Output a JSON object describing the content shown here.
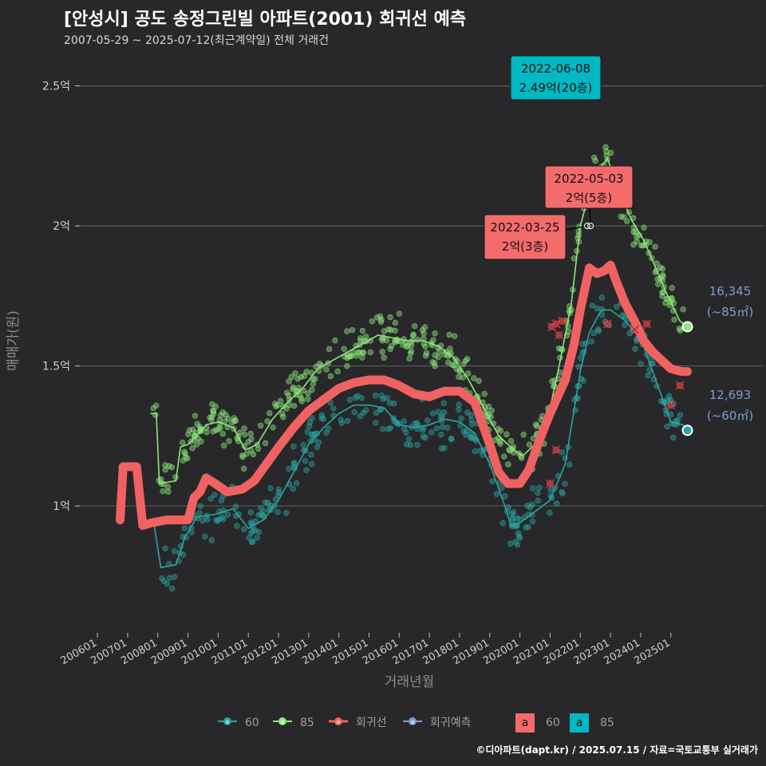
{
  "header": {
    "title": "[안성시] 공도 송정그린빌 아파트(2001) 회귀선 예측",
    "subtitle": "2007-05-29 ~ 2025-07-12(최근계약일) 전체 거래건"
  },
  "caption": "©디아파트(dapt.kr) / 2025.07.15 / 자료=국토교통부 실거래가",
  "colors": {
    "background": "#28282a",
    "grid": "#5a5a5a",
    "s60": "#2aa5a0",
    "s85": "#8ee67c",
    "regression": "#f06262",
    "forecast": "#7f9ccc",
    "label60": "#f36b6b",
    "label85": "#00b9c4"
  },
  "chart_data": {
    "type": "scatter",
    "xlabel": "거래년월",
    "ylabel": "매매가(원)",
    "x_ticks": [
      "200601",
      "200701",
      "200801",
      "200901",
      "201001",
      "201101",
      "201201",
      "201301",
      "201401",
      "201501",
      "201601",
      "201701",
      "201801",
      "201901",
      "202001",
      "202101",
      "202201",
      "202301",
      "202401",
      "202501"
    ],
    "y_ticks": [
      {
        "value": 1.0,
        "label": "1억"
      },
      {
        "value": 1.5,
        "label": "1.5억"
      },
      {
        "value": 2.0,
        "label": "2억"
      },
      {
        "value": 2.5,
        "label": "2.5억"
      }
    ],
    "ylim": [
      0.55,
      2.63
    ],
    "xlim": [
      2005.6,
      2026.25
    ],
    "series": [
      {
        "name": "60",
        "line": [
          [
            2007.85,
            0.95
          ],
          [
            2008.1,
            0.78
          ],
          [
            2008.6,
            0.79
          ],
          [
            2008.9,
            0.89
          ],
          [
            2009.3,
            0.96
          ],
          [
            2009.9,
            0.97
          ],
          [
            2010.5,
            0.99
          ],
          [
            2011.0,
            0.92
          ],
          [
            2011.5,
            0.95
          ],
          [
            2012.0,
            1.02
          ],
          [
            2012.5,
            1.12
          ],
          [
            2013.0,
            1.22
          ],
          [
            2013.5,
            1.28
          ],
          [
            2014.0,
            1.33
          ],
          [
            2014.5,
            1.36
          ],
          [
            2015.0,
            1.36
          ],
          [
            2015.5,
            1.35
          ],
          [
            2016.0,
            1.29
          ],
          [
            2016.5,
            1.28
          ],
          [
            2017.0,
            1.29
          ],
          [
            2017.5,
            1.31
          ],
          [
            2018.0,
            1.3
          ],
          [
            2018.5,
            1.26
          ],
          [
            2019.0,
            1.15
          ],
          [
            2019.5,
            1.0
          ],
          [
            2019.7,
            0.93
          ],
          [
            2020.0,
            0.94
          ],
          [
            2020.5,
            0.98
          ],
          [
            2021.0,
            1.02
          ],
          [
            2021.5,
            1.15
          ],
          [
            2022.0,
            1.48
          ],
          [
            2022.3,
            1.62
          ],
          [
            2022.7,
            1.7
          ],
          [
            2023.0,
            1.7
          ],
          [
            2023.5,
            1.66
          ],
          [
            2024.0,
            1.6
          ],
          [
            2024.5,
            1.45
          ],
          [
            2025.0,
            1.3
          ],
          [
            2025.4,
            1.29
          ],
          [
            2025.55,
            1.27
          ]
        ]
      },
      {
        "name": "85",
        "line": [
          [
            2007.75,
            1.33
          ],
          [
            2007.95,
            1.33
          ],
          [
            2008.05,
            1.08
          ],
          [
            2008.6,
            1.09
          ],
          [
            2008.75,
            1.21
          ],
          [
            2009.0,
            1.22
          ],
          [
            2009.3,
            1.25
          ],
          [
            2009.6,
            1.29
          ],
          [
            2010.0,
            1.3
          ],
          [
            2010.5,
            1.28
          ],
          [
            2010.9,
            1.2
          ],
          [
            2011.3,
            1.22
          ],
          [
            2011.8,
            1.31
          ],
          [
            2012.3,
            1.37
          ],
          [
            2012.8,
            1.42
          ],
          [
            2013.3,
            1.49
          ],
          [
            2013.8,
            1.52
          ],
          [
            2014.3,
            1.55
          ],
          [
            2014.8,
            1.58
          ],
          [
            2015.3,
            1.61
          ],
          [
            2015.8,
            1.6
          ],
          [
            2016.3,
            1.59
          ],
          [
            2016.8,
            1.59
          ],
          [
            2017.3,
            1.57
          ],
          [
            2017.8,
            1.53
          ],
          [
            2018.3,
            1.45
          ],
          [
            2018.8,
            1.35
          ],
          [
            2019.3,
            1.25
          ],
          [
            2019.8,
            1.2
          ],
          [
            2020.1,
            1.18
          ],
          [
            2020.5,
            1.22
          ],
          [
            2021.0,
            1.35
          ],
          [
            2021.3,
            1.5
          ],
          [
            2021.7,
            1.72
          ],
          [
            2022.0,
            2.0
          ],
          [
            2022.3,
            2.12
          ],
          [
            2022.6,
            2.2
          ],
          [
            2022.9,
            2.24
          ],
          [
            2023.3,
            2.12
          ],
          [
            2023.7,
            2.02
          ],
          [
            2024.1,
            1.95
          ],
          [
            2024.5,
            1.85
          ],
          [
            2024.9,
            1.75
          ],
          [
            2025.3,
            1.66
          ],
          [
            2025.55,
            1.64
          ]
        ]
      },
      {
        "name": "회귀선",
        "line": [
          [
            2006.75,
            0.95
          ],
          [
            2006.85,
            1.14
          ],
          [
            2007.3,
            1.14
          ],
          [
            2007.5,
            0.93
          ],
          [
            2007.8,
            0.94
          ],
          [
            2008.3,
            0.95
          ],
          [
            2008.8,
            0.95
          ],
          [
            2009.0,
            0.95
          ],
          [
            2009.2,
            1.03
          ],
          [
            2009.4,
            1.05
          ],
          [
            2009.6,
            1.1
          ],
          [
            2009.9,
            1.08
          ],
          [
            2010.3,
            1.05
          ],
          [
            2010.8,
            1.06
          ],
          [
            2011.2,
            1.09
          ],
          [
            2011.6,
            1.15
          ],
          [
            2012.0,
            1.21
          ],
          [
            2012.5,
            1.28
          ],
          [
            2013.0,
            1.34
          ],
          [
            2013.5,
            1.38
          ],
          [
            2014.0,
            1.42
          ],
          [
            2014.5,
            1.44
          ],
          [
            2015.0,
            1.45
          ],
          [
            2015.5,
            1.45
          ],
          [
            2016.0,
            1.43
          ],
          [
            2016.5,
            1.4
          ],
          [
            2017.0,
            1.39
          ],
          [
            2017.5,
            1.41
          ],
          [
            2018.0,
            1.41
          ],
          [
            2018.5,
            1.37
          ],
          [
            2019.0,
            1.22
          ],
          [
            2019.3,
            1.12
          ],
          [
            2019.6,
            1.08
          ],
          [
            2020.0,
            1.08
          ],
          [
            2020.3,
            1.13
          ],
          [
            2020.7,
            1.25
          ],
          [
            2021.0,
            1.33
          ],
          [
            2021.5,
            1.45
          ],
          [
            2021.8,
            1.58
          ],
          [
            2022.0,
            1.7
          ],
          [
            2022.3,
            1.85
          ],
          [
            2022.55,
            1.83
          ],
          [
            2022.8,
            1.84
          ],
          [
            2023.0,
            1.86
          ],
          [
            2023.2,
            1.8
          ],
          [
            2023.5,
            1.72
          ],
          [
            2023.8,
            1.66
          ],
          [
            2024.1,
            1.59
          ],
          [
            2024.4,
            1.55
          ],
          [
            2024.7,
            1.52
          ],
          [
            2025.0,
            1.49
          ],
          [
            2025.35,
            1.48
          ],
          [
            2025.55,
            1.48
          ]
        ]
      },
      {
        "name": "회귀예측",
        "points": [
          [
            2021.0,
            1.08
          ],
          [
            2021.2,
            1.2
          ],
          [
            2021.05,
            1.64
          ],
          [
            2021.2,
            1.65
          ],
          [
            2021.4,
            1.66
          ],
          [
            2022.9,
            1.65
          ],
          [
            2023.8,
            1.63
          ],
          [
            2024.2,
            1.65
          ],
          [
            2025.0,
            1.36
          ],
          [
            2025.3,
            1.43
          ],
          [
            2021.3,
            1.61
          ]
        ]
      }
    ],
    "end_labels": [
      {
        "value": "16,345",
        "unit": "(~85㎡)"
      },
      {
        "value": "12,693",
        "unit": "(~60㎡)"
      }
    ],
    "annotations": [
      {
        "date": "2022-06-08",
        "price": "2.49억(20층)",
        "series": "85",
        "x": 2022.43,
        "y": 2.49
      },
      {
        "date": "2022-05-03",
        "price": "2억(5층)",
        "series": "60",
        "x": 2022.34,
        "y": 2.0
      },
      {
        "date": "2022-03-25",
        "price": "2억(3층)",
        "series": "60",
        "x": 2022.23,
        "y": 2.0
      }
    ]
  },
  "legend": {
    "items": [
      "60",
      "85",
      "회귀선",
      "회귀예측"
    ],
    "label_boxes": [
      {
        "letter": "a",
        "name": "60"
      },
      {
        "letter": "a",
        "name": "85"
      }
    ]
  }
}
